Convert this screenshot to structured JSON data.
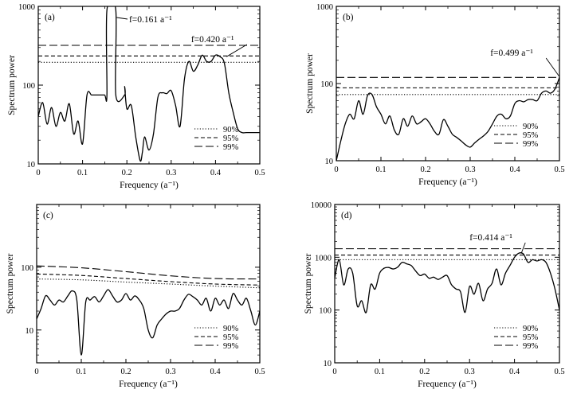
{
  "chart_data": [
    {
      "type": "line",
      "panel_label": "(a)",
      "xlabel": "Frequency (a⁻¹)",
      "ylabel": "Spectrum power",
      "xlim": [
        0,
        0.5
      ],
      "ylim": [
        10,
        1000
      ],
      "yscale": "log",
      "xticks": [
        "0",
        "0.1",
        "0.2",
        "0.3",
        "0.4",
        "0.5"
      ],
      "yticks": [
        "10",
        "100",
        "1000"
      ],
      "thresholds": {
        "90%": 195,
        "95%": 235,
        "99%": 320
      },
      "legend": [
        "90%",
        "95%",
        "99%"
      ],
      "annotations": [
        {
          "text": "f=0.161 a⁻¹",
          "x": 0.161,
          "y": 900
        },
        {
          "text": "f=0.420 a⁻¹",
          "x": 0.42,
          "y": 240
        }
      ],
      "x": [
        0,
        0.01,
        0.02,
        0.03,
        0.04,
        0.05,
        0.06,
        0.07,
        0.08,
        0.09,
        0.1,
        0.11,
        0.12,
        0.125,
        0.13,
        0.135,
        0.14,
        0.15,
        0.155,
        0.155,
        0.175,
        0.175,
        0.195,
        0.195,
        0.2,
        0.21,
        0.22,
        0.23,
        0.235,
        0.24,
        0.25,
        0.26,
        0.27,
        0.28,
        0.29,
        0.3,
        0.31,
        0.32,
        0.33,
        0.34,
        0.35,
        0.36,
        0.37,
        0.38,
        0.39,
        0.4,
        0.41,
        0.42,
        0.43,
        0.44,
        0.45,
        0.46,
        0.47,
        0.48,
        0.49,
        0.5
      ],
      "values": [
        40,
        60,
        32,
        52,
        30,
        45,
        35,
        58,
        24,
        35,
        18,
        75,
        75,
        75,
        75,
        75,
        75,
        75,
        75,
        900,
        900,
        75,
        75,
        95,
        50,
        55,
        22,
        11,
        14,
        22,
        15,
        24,
        70,
        80,
        78,
        85,
        55,
        30,
        120,
        200,
        150,
        180,
        240,
        200,
        200,
        240,
        230,
        190,
        80,
        45,
        28,
        25,
        25,
        25,
        25,
        25
      ]
    },
    {
      "type": "line",
      "panel_label": "(b)",
      "xlabel": "Frequency (a⁻¹)",
      "ylabel": "Spectrum power",
      "xlim": [
        0,
        0.5
      ],
      "ylim": [
        10,
        1000
      ],
      "yscale": "log",
      "xticks": [
        "0",
        "0.1",
        "0.2",
        "0.3",
        "0.4",
        "0.5"
      ],
      "yticks": [
        "10",
        "100",
        "1000"
      ],
      "thresholds": {
        "90%": 72,
        "95%": 88,
        "99%": 120
      },
      "legend": [
        "90%",
        "95%",
        "99%"
      ],
      "annotations": [
        {
          "text": "f=0.499 a⁻¹",
          "x": 0.499,
          "y": 120
        }
      ],
      "x": [
        0,
        0.01,
        0.02,
        0.03,
        0.04,
        0.05,
        0.06,
        0.07,
        0.08,
        0.09,
        0.1,
        0.11,
        0.12,
        0.13,
        0.14,
        0.15,
        0.16,
        0.17,
        0.18,
        0.19,
        0.2,
        0.21,
        0.22,
        0.23,
        0.24,
        0.25,
        0.26,
        0.27,
        0.28,
        0.29,
        0.3,
        0.31,
        0.32,
        0.33,
        0.34,
        0.35,
        0.36,
        0.37,
        0.38,
        0.39,
        0.4,
        0.41,
        0.42,
        0.43,
        0.44,
        0.45,
        0.46,
        0.47,
        0.48,
        0.49,
        0.5
      ],
      "values": [
        10,
        18,
        30,
        40,
        35,
        60,
        40,
        70,
        72,
        50,
        40,
        30,
        38,
        25,
        22,
        35,
        28,
        38,
        30,
        32,
        35,
        30,
        24,
        22,
        34,
        28,
        22,
        20,
        18,
        16,
        15,
        17,
        19,
        21,
        24,
        30,
        38,
        40,
        35,
        38,
        55,
        60,
        58,
        62,
        62,
        60,
        75,
        80,
        75,
        85,
        120
      ]
    },
    {
      "type": "line",
      "panel_label": "(c)",
      "xlabel": "Frequency (a⁻¹)",
      "ylabel": "Spectrum power",
      "xlim": [
        0,
        0.5
      ],
      "ylim": [
        3,
        1000
      ],
      "yscale": "log",
      "xticks": [
        "0",
        "0.1",
        "0.2",
        "0.3",
        "0.4",
        "0.5"
      ],
      "yticks": [
        "10",
        "100"
      ],
      "thresholds_curves": {
        "90%": [
          65,
          63,
          58,
          54,
          50,
          47
        ],
        "95%": [
          78,
          74,
          66,
          59,
          54,
          52
        ],
        "99%": [
          105,
          98,
          85,
          73,
          66,
          65
        ]
      },
      "legend": [
        "90%",
        "95%",
        "99%"
      ],
      "x": [
        0,
        0.01,
        0.02,
        0.03,
        0.04,
        0.05,
        0.06,
        0.07,
        0.08,
        0.09,
        0.1,
        0.11,
        0.12,
        0.13,
        0.14,
        0.15,
        0.16,
        0.17,
        0.18,
        0.19,
        0.2,
        0.21,
        0.22,
        0.23,
        0.24,
        0.25,
        0.26,
        0.27,
        0.28,
        0.29,
        0.3,
        0.31,
        0.32,
        0.33,
        0.34,
        0.35,
        0.36,
        0.37,
        0.38,
        0.39,
        0.4,
        0.41,
        0.42,
        0.43,
        0.44,
        0.45,
        0.46,
        0.47,
        0.48,
        0.49,
        0.5
      ],
      "values": [
        15,
        22,
        35,
        30,
        25,
        30,
        28,
        35,
        42,
        30,
        4,
        28,
        30,
        34,
        28,
        35,
        44,
        35,
        28,
        30,
        38,
        30,
        35,
        30,
        22,
        10,
        7.5,
        12,
        15,
        18,
        20,
        20,
        22,
        30,
        37,
        34,
        30,
        25,
        32,
        20,
        32,
        25,
        30,
        22,
        38,
        30,
        25,
        32,
        20,
        12,
        20
      ]
    },
    {
      "type": "line",
      "panel_label": "(d)",
      "xlabel": "Frequency (a⁻¹)",
      "ylabel": "Spectrum power",
      "xlim": [
        0,
        0.5
      ],
      "ylim": [
        10,
        10000
      ],
      "yscale": "log",
      "xticks": [
        "0",
        "0.1",
        "0.2",
        "0.3",
        "0.4",
        "0.5"
      ],
      "yticks": [
        "10",
        "100",
        "1000",
        "10000"
      ],
      "thresholds": {
        "90%": 900,
        "95%": 1100,
        "99%": 1450
      },
      "legend": [
        "90%",
        "95%",
        "99%"
      ],
      "annotations": [
        {
          "text": "f=0.414 a⁻¹",
          "x": 0.414,
          "y": 1200
        }
      ],
      "x": [
        0,
        0.01,
        0.02,
        0.03,
        0.04,
        0.05,
        0.06,
        0.07,
        0.08,
        0.09,
        0.1,
        0.11,
        0.12,
        0.13,
        0.14,
        0.15,
        0.16,
        0.17,
        0.18,
        0.19,
        0.2,
        0.21,
        0.22,
        0.23,
        0.24,
        0.25,
        0.26,
        0.27,
        0.28,
        0.29,
        0.3,
        0.31,
        0.32,
        0.33,
        0.34,
        0.35,
        0.36,
        0.37,
        0.38,
        0.39,
        0.4,
        0.41,
        0.42,
        0.43,
        0.44,
        0.45,
        0.46,
        0.47,
        0.48,
        0.49,
        0.5
      ],
      "values": [
        400,
        900,
        300,
        600,
        500,
        120,
        150,
        90,
        300,
        250,
        500,
        620,
        640,
        600,
        650,
        800,
        750,
        700,
        550,
        450,
        480,
        400,
        420,
        380,
        420,
        450,
        300,
        250,
        220,
        90,
        280,
        200,
        320,
        150,
        250,
        320,
        600,
        300,
        500,
        700,
        1000,
        1200,
        1150,
        800,
        900,
        850,
        900,
        800,
        500,
        250,
        100
      ]
    }
  ]
}
